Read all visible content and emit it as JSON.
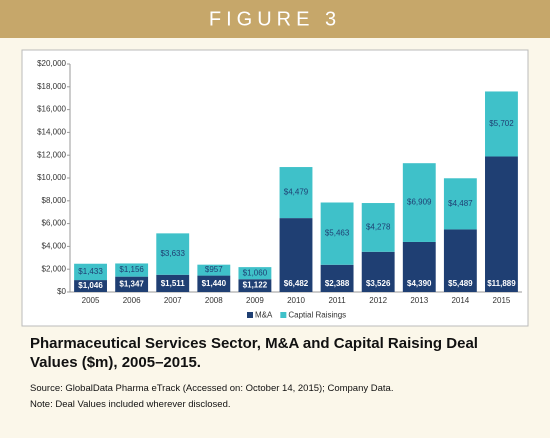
{
  "chart_data": {
    "type": "stacked_bar",
    "figure": "FIGURE 3",
    "title": "Pharmaceutical Services Sector, M&A and Capital Raising Deal Values ($m), 2005–2015.",
    "source": "Source: GlobalData Pharma eTrack (Accessed on: October 14, 2015); Company Data.",
    "note": "Note: Deal Values included wherever disclosed.",
    "categories": [
      "2005",
      "2006",
      "2007",
      "2008",
      "2009",
      "2010",
      "2011",
      "2012",
      "2013",
      "2014",
      "2015"
    ],
    "series": [
      {
        "name": "M&A",
        "color": "#1f3f73",
        "values": [
          1046,
          1347,
          1511,
          1440,
          1122,
          6482,
          2388,
          3526,
          4390,
          5489,
          11889
        ],
        "value_labels": [
          "$1,046",
          "$1,347",
          "$1,511",
          "$1,440",
          "$1,122",
          "$6,482",
          "$2,388",
          "$3,526",
          "$4,390",
          "$5,489",
          "$11,889"
        ]
      },
      {
        "name": "Captial Raisings",
        "color": "#3fc1c9",
        "values": [
          1433,
          1156,
          3633,
          957,
          1060,
          4479,
          5463,
          4278,
          6909,
          4487,
          5702
        ],
        "value_labels": [
          "$1,433",
          "$1,156",
          "$3,633",
          "$957",
          "$1,060",
          "$4,479",
          "$5,463",
          "$4,278",
          "$6,909",
          "$4,487",
          "$5,702"
        ]
      }
    ],
    "ylim": [
      0,
      20000
    ],
    "yticks": [
      {
        "value": 0,
        "label": "$0"
      },
      {
        "value": 2000,
        "label": "$2,000"
      },
      {
        "value": 4000,
        "label": "$4,000"
      },
      {
        "value": 6000,
        "label": "$6,000"
      },
      {
        "value": 8000,
        "label": "$8,000"
      },
      {
        "value": 10000,
        "label": "$10,000"
      },
      {
        "value": 12000,
        "label": "$12,000"
      },
      {
        "value": 14000,
        "label": "$14,000"
      },
      {
        "value": 16000,
        "label": "$16,000"
      },
      {
        "value": 18000,
        "label": "$18,000"
      },
      {
        "value": 20000,
        "label": "$20,000"
      }
    ],
    "legend": "bottom"
  }
}
